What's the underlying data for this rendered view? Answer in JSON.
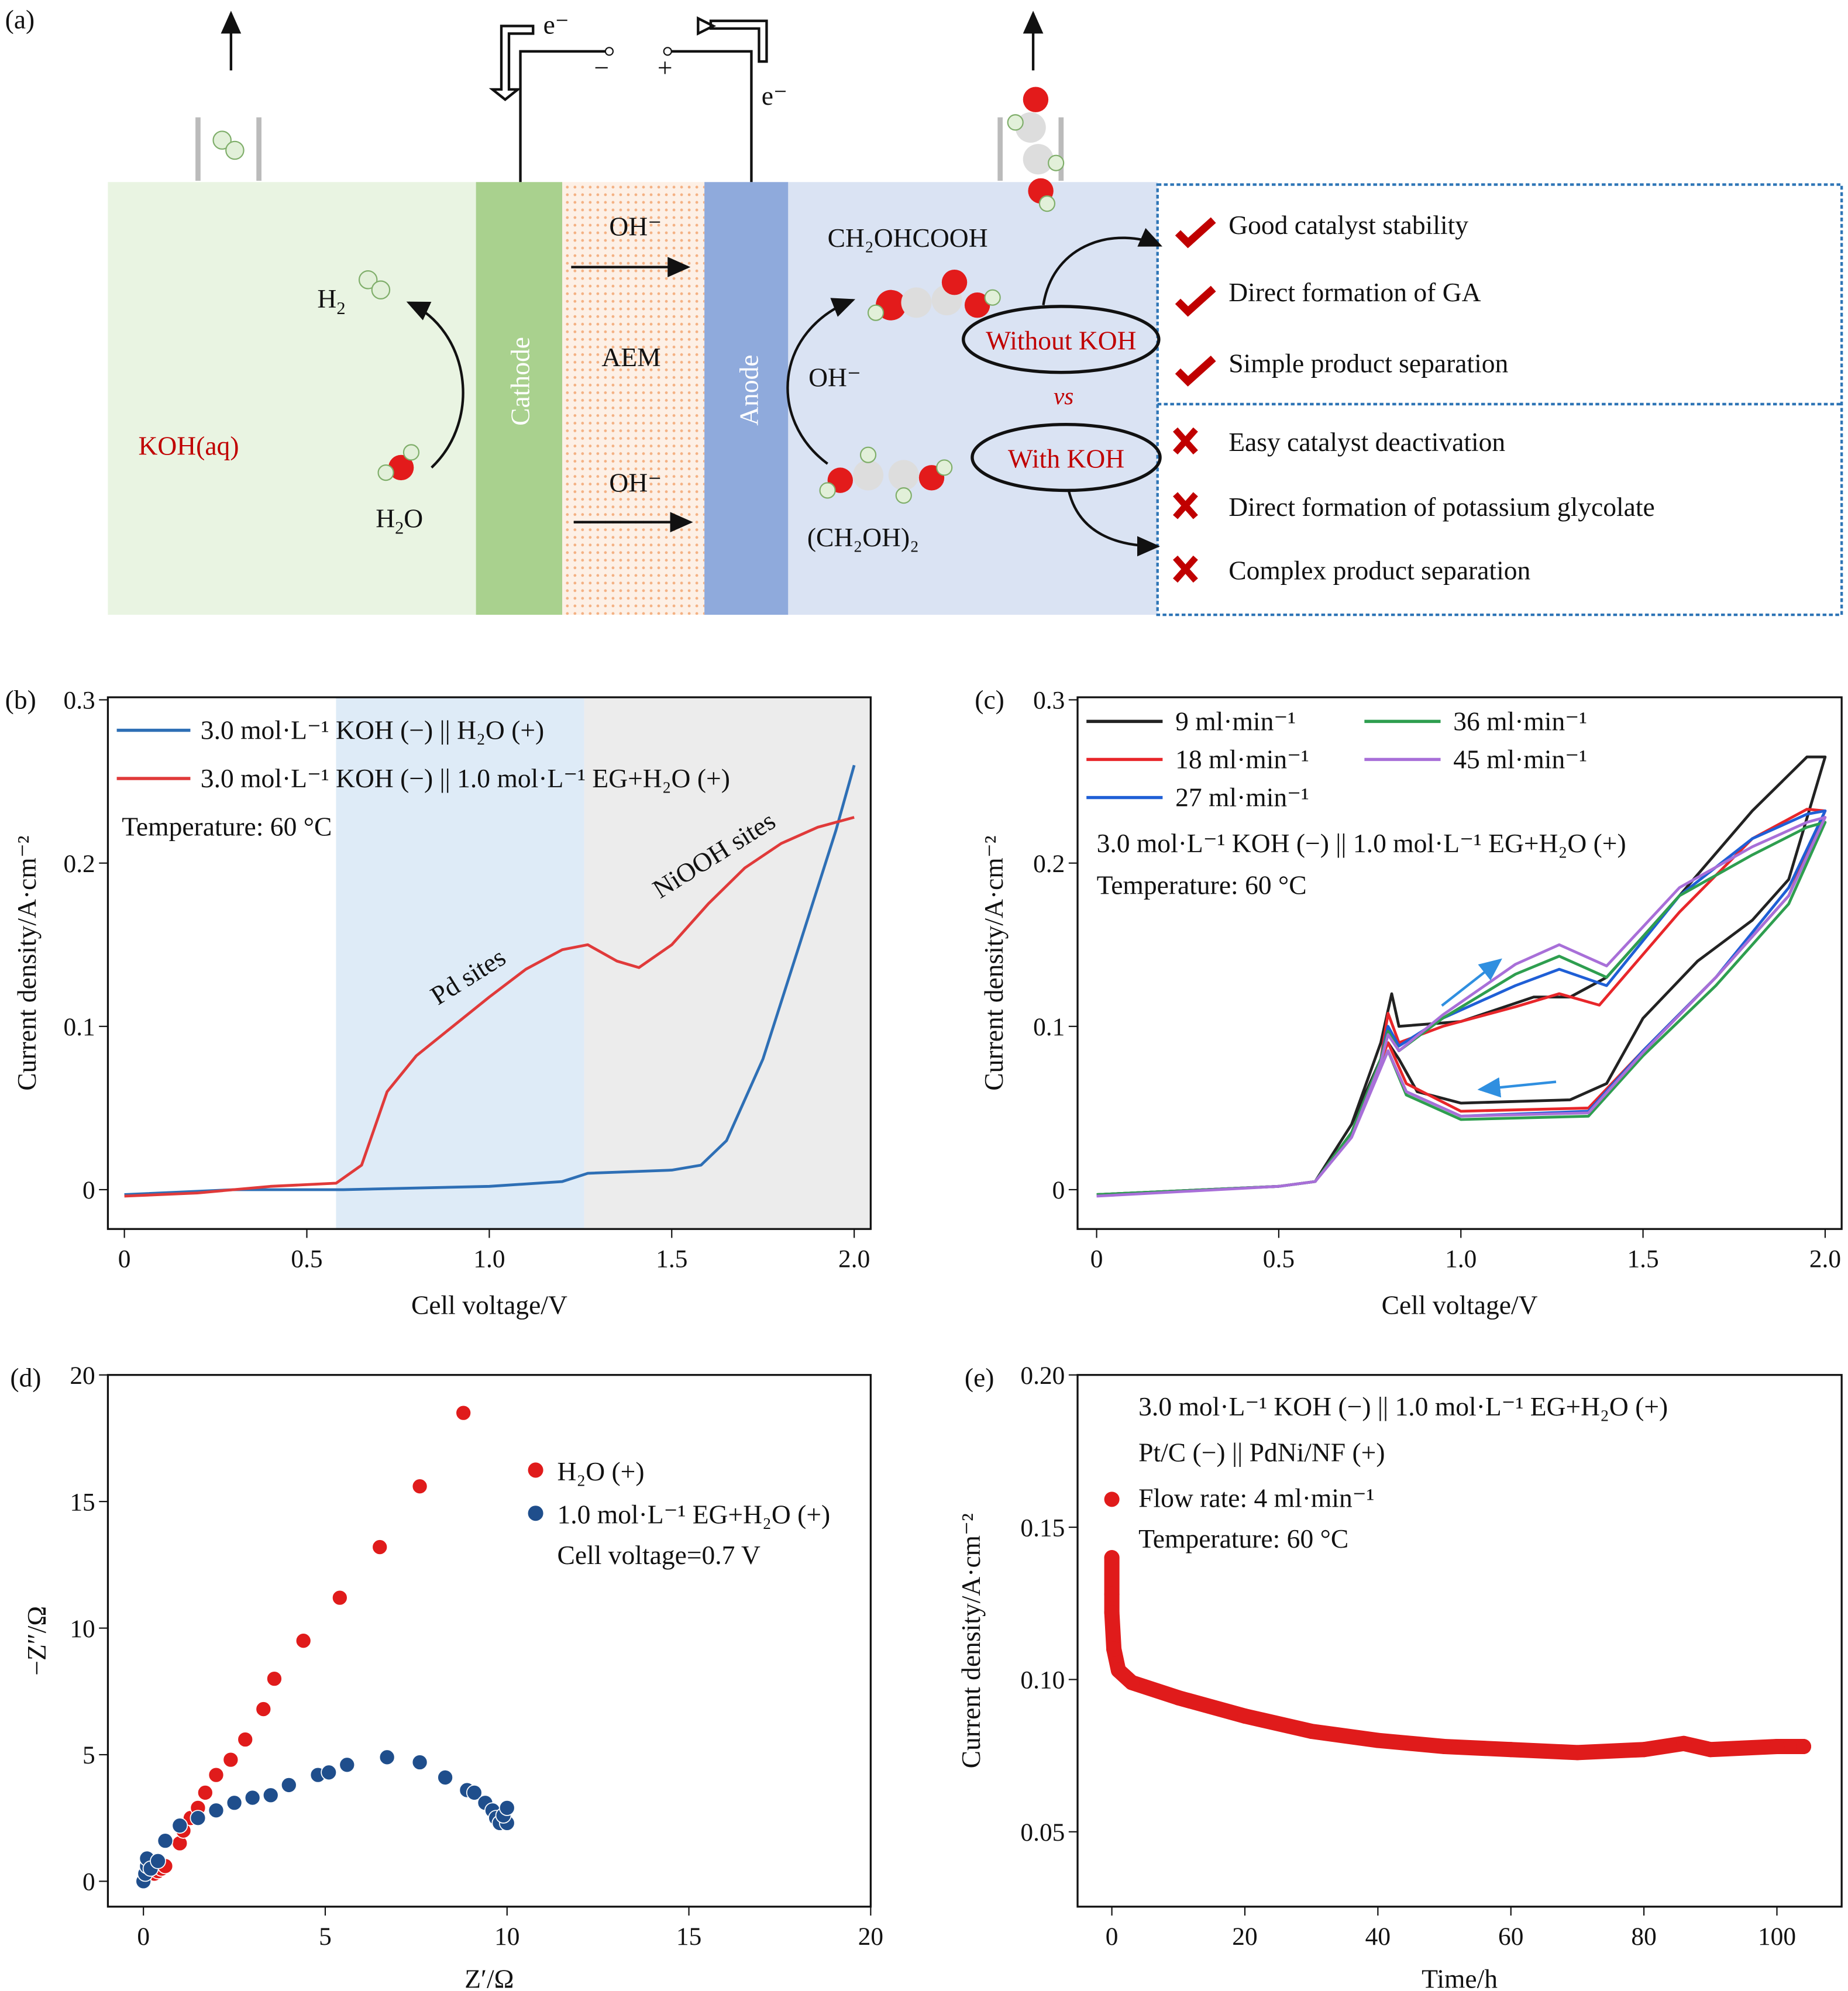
{
  "panel_labels": [
    "(a)",
    "(b)",
    "(c)",
    "(d)",
    "(e)"
  ],
  "diagram": {
    "electrolyte_left": "KOH(aq)",
    "cathode": "Cathode",
    "membrane": "AEM",
    "anode": "Anode",
    "electron": "e⁻",
    "minus": "−",
    "plus": "+",
    "h2": "H",
    "h2_sub": "2",
    "h2o": "H",
    "h2o_sub": "2",
    "h2o_end": "O",
    "oh1": "OH⁻",
    "oh2": "OH⁻",
    "oh3": "OH⁻",
    "product": "CH₂OHCOOH",
    "reactant": "(CH₂OH)₂",
    "without_koh": "Without KOH",
    "vs": "vs",
    "with_koh": "With KOH",
    "pros": [
      "Good catalyst stability",
      "Direct formation of GA",
      "Simple product separation"
    ],
    "cons": [
      "Easy catalyst deactivation",
      "Direct formation of potassium glycolate",
      "Complex product separation"
    ],
    "colors": {
      "left": "#e9f4e2",
      "cathode": "#a9d18e",
      "membrane": "#fbe5d6",
      "anode": "#8faadc",
      "right": "#dae3f3",
      "check": "#c00000",
      "box": "#2e75b6"
    }
  },
  "chart_data": [
    {
      "panel": "(b)",
      "type": "line",
      "xlabel": "Cell voltage/V",
      "ylabel": "Current density/A·cm⁻²",
      "xlim": [
        -0.05,
        2.05
      ],
      "ylim": [
        -0.025,
        0.3
      ],
      "xticks": [
        "0",
        "0.5",
        "1.0",
        "1.5",
        "2.0"
      ],
      "yticks": [
        "0",
        "0.1",
        "0.2",
        "0.3"
      ],
      "annotations": [
        "Temperature: 60 °C",
        "Pd sites",
        "NiOOH sites"
      ],
      "shaded_regions": [
        {
          "from": 0.58,
          "to": 1.26,
          "color": "#deebf7"
        },
        {
          "from": 1.26,
          "to": 2.05,
          "color": "#ececec"
        }
      ],
      "series": [
        {
          "name": "3.0 mol·L⁻¹ KOH (−) || H₂O (+)",
          "color": "#2e6fb5",
          "x": [
            0,
            0.3,
            0.6,
            1.0,
            1.2,
            1.27,
            1.5,
            1.58,
            1.65,
            1.75,
            1.85,
            1.95,
            2.0
          ],
          "y": [
            -0.003,
            0,
            0,
            0.002,
            0.005,
            0.01,
            0.012,
            0.015,
            0.03,
            0.08,
            0.15,
            0.22,
            0.26
          ]
        },
        {
          "name": "3.0 mol·L⁻¹ KOH (−) || 1.0 mol·L⁻¹ EG+H₂O (+)",
          "color": "#e03a3a",
          "x": [
            0,
            0.2,
            0.4,
            0.58,
            0.65,
            0.72,
            0.8,
            0.9,
            1.0,
            1.1,
            1.2,
            1.27,
            1.35,
            1.41,
            1.5,
            1.6,
            1.7,
            1.8,
            1.9,
            2.0
          ],
          "y": [
            -0.004,
            -0.002,
            0.002,
            0.004,
            0.015,
            0.06,
            0.082,
            0.1,
            0.118,
            0.135,
            0.147,
            0.15,
            0.14,
            0.136,
            0.15,
            0.175,
            0.197,
            0.212,
            0.222,
            0.228
          ]
        }
      ]
    },
    {
      "panel": "(c)",
      "type": "line",
      "xlabel": "Cell voltage/V",
      "ylabel": "Current density/A·cm⁻²",
      "xlim": [
        -0.05,
        2.05
      ],
      "ylim": [
        -0.025,
        0.3
      ],
      "xticks": [
        "0",
        "0.5",
        "1.0",
        "1.5",
        "2.0"
      ],
      "yticks": [
        "0",
        "0.1",
        "0.2",
        "0.3"
      ],
      "annotations": [
        "3.0 mol·L⁻¹ KOH (−) || 1.0 mol·L⁻¹ EG+H₂O (+)",
        "Temperature: 60 °C"
      ],
      "series": [
        {
          "name": "9 ml·min⁻¹",
          "color": "#222222",
          "x": [
            0,
            0.5,
            0.6,
            0.7,
            0.78,
            0.81,
            0.83,
            1.0,
            1.2,
            1.3,
            1.4,
            1.6,
            1.8,
            1.95,
            2.0,
            1.9,
            1.8,
            1.65,
            1.5,
            1.4,
            1.3,
            1.0,
            0.88,
            0.83,
            0.8,
            0.7
          ],
          "y": [
            -0.003,
            0.002,
            0.005,
            0.04,
            0.09,
            0.12,
            0.1,
            0.103,
            0.118,
            0.118,
            0.13,
            0.18,
            0.232,
            0.265,
            0.265,
            0.19,
            0.165,
            0.14,
            0.105,
            0.065,
            0.055,
            0.053,
            0.06,
            0.08,
            0.09,
            0.04
          ]
        },
        {
          "name": "18 ml·min⁻¹",
          "color": "#e8262a",
          "x": [
            0,
            0.5,
            0.6,
            0.7,
            0.78,
            0.8,
            0.83,
            0.95,
            1.15,
            1.27,
            1.38,
            1.6,
            1.8,
            1.95,
            2.0,
            1.9,
            1.7,
            1.5,
            1.35,
            1.0,
            0.85,
            0.8,
            0.7
          ],
          "y": [
            -0.003,
            0.002,
            0.005,
            0.035,
            0.08,
            0.108,
            0.09,
            0.1,
            0.112,
            0.12,
            0.113,
            0.17,
            0.215,
            0.233,
            0.232,
            0.18,
            0.13,
            0.085,
            0.05,
            0.048,
            0.065,
            0.09,
            0.035
          ]
        },
        {
          "name": "27 ml·min⁻¹",
          "color": "#1f5fd6",
          "x": [
            0,
            0.5,
            0.6,
            0.7,
            0.78,
            0.8,
            0.83,
            0.95,
            1.15,
            1.27,
            1.4,
            1.6,
            1.8,
            1.95,
            2.0,
            1.9,
            1.7,
            1.5,
            1.35,
            1.0,
            0.85,
            0.8,
            0.7
          ],
          "y": [
            -0.003,
            0.002,
            0.005,
            0.035,
            0.08,
            0.1,
            0.088,
            0.105,
            0.125,
            0.135,
            0.125,
            0.18,
            0.215,
            0.23,
            0.232,
            0.185,
            0.13,
            0.085,
            0.048,
            0.045,
            0.06,
            0.085,
            0.035
          ]
        },
        {
          "name": "36 ml·min⁻¹",
          "color": "#2e9e4f",
          "x": [
            0,
            0.5,
            0.6,
            0.7,
            0.78,
            0.8,
            0.83,
            0.95,
            1.15,
            1.27,
            1.4,
            1.6,
            1.8,
            1.95,
            2.0,
            1.9,
            1.7,
            1.5,
            1.35,
            1.0,
            0.85,
            0.8,
            0.7
          ],
          "y": [
            -0.003,
            0.002,
            0.005,
            0.035,
            0.08,
            0.097,
            0.085,
            0.105,
            0.132,
            0.143,
            0.13,
            0.18,
            0.205,
            0.222,
            0.225,
            0.175,
            0.125,
            0.082,
            0.045,
            0.043,
            0.058,
            0.085,
            0.035
          ]
        },
        {
          "name": "45 ml·min⁻¹",
          "color": "#a86fd8",
          "x": [
            0,
            0.5,
            0.6,
            0.7,
            0.78,
            0.8,
            0.83,
            0.95,
            1.15,
            1.27,
            1.4,
            1.6,
            1.8,
            1.95,
            2.0,
            1.9,
            1.7,
            1.5,
            1.35,
            1.0,
            0.85,
            0.8,
            0.7
          ],
          "y": [
            -0.004,
            0.002,
            0.005,
            0.032,
            0.078,
            0.095,
            0.085,
            0.107,
            0.138,
            0.15,
            0.137,
            0.185,
            0.21,
            0.225,
            0.228,
            0.18,
            0.13,
            0.084,
            0.047,
            0.045,
            0.06,
            0.085,
            0.032
          ]
        }
      ]
    },
    {
      "panel": "(d)",
      "type": "scatter",
      "xlabel": "Z′/Ω",
      "ylabel": "−Z″/Ω",
      "xlim": [
        -1,
        20
      ],
      "ylim": [
        0,
        20
      ],
      "xticks": [
        "0",
        "5",
        "10",
        "15",
        "20"
      ],
      "yticks": [
        "0",
        "5",
        "10",
        "15",
        "20"
      ],
      "annotations": [
        "Cell voltage=0.7 V"
      ],
      "series": [
        {
          "name": "H₂O (+)",
          "color": "#e01b1b",
          "x": [
            0.3,
            0.4,
            0.5,
            0.6,
            1.0,
            1.1,
            1.3,
            1.5,
            1.7,
            2.0,
            2.4,
            2.8,
            3.3,
            3.6,
            4.4,
            5.4,
            6.5,
            7.6,
            8.8
          ],
          "y": [
            0.3,
            0.4,
            0.5,
            0.6,
            1.5,
            2.0,
            2.5,
            2.9,
            3.5,
            4.2,
            4.8,
            5.6,
            6.8,
            8.0,
            9.5,
            11.2,
            13.2,
            15.6,
            18.5
          ]
        },
        {
          "name": "1.0 mol·L⁻¹ EG+H₂O (+)",
          "color": "#1f4e8c",
          "x": [
            0,
            0.05,
            0.1,
            0.1,
            0.2,
            0.4,
            0.6,
            1.0,
            1.5,
            2.0,
            2.5,
            3.0,
            3.5,
            4.0,
            4.8,
            5.1,
            5.6,
            6.7,
            7.6,
            8.3,
            8.9,
            9.1,
            9.4,
            9.6,
            9.7,
            9.8,
            10.0,
            9.9,
            10.0
          ],
          "y": [
            0,
            0.3,
            0.6,
            0.9,
            0.5,
            0.8,
            1.6,
            2.2,
            2.5,
            2.8,
            3.1,
            3.3,
            3.4,
            3.8,
            4.2,
            4.3,
            4.6,
            4.9,
            4.7,
            4.1,
            3.6,
            3.5,
            3.1,
            2.8,
            2.5,
            2.3,
            2.3,
            2.6,
            2.9
          ]
        }
      ]
    },
    {
      "panel": "(e)",
      "type": "scatter",
      "xlabel": "Time/h",
      "ylabel": "Current density/A·cm⁻²",
      "xlim": [
        -5,
        110
      ],
      "ylim": [
        0.035,
        0.2
      ],
      "xticks": [
        "0",
        "20",
        "40",
        "60",
        "80",
        "100"
      ],
      "yticks": [
        "0.05",
        "0.10",
        "0.15",
        "0.20"
      ],
      "annotations": [
        "3.0 mol·L⁻¹ KOH (−) || 1.0 mol·L⁻¹ EG+H₂O (+)",
        "Pt/C (−) || PdNi/NF (+)",
        "Flow rate: 4 ml·min⁻¹",
        "Temperature: 60 °C"
      ],
      "series": [
        {
          "color": "#e01b1b",
          "x": [
            0,
            0,
            0,
            0.3,
            1,
            3,
            10,
            20,
            30,
            40,
            50,
            60,
            70,
            80,
            86,
            90,
            100,
            104
          ],
          "y": [
            0.14,
            0.128,
            0.122,
            0.11,
            0.103,
            0.099,
            0.094,
            0.088,
            0.083,
            0.08,
            0.078,
            0.077,
            0.076,
            0.077,
            0.079,
            0.077,
            0.078,
            0.078
          ]
        }
      ]
    }
  ]
}
